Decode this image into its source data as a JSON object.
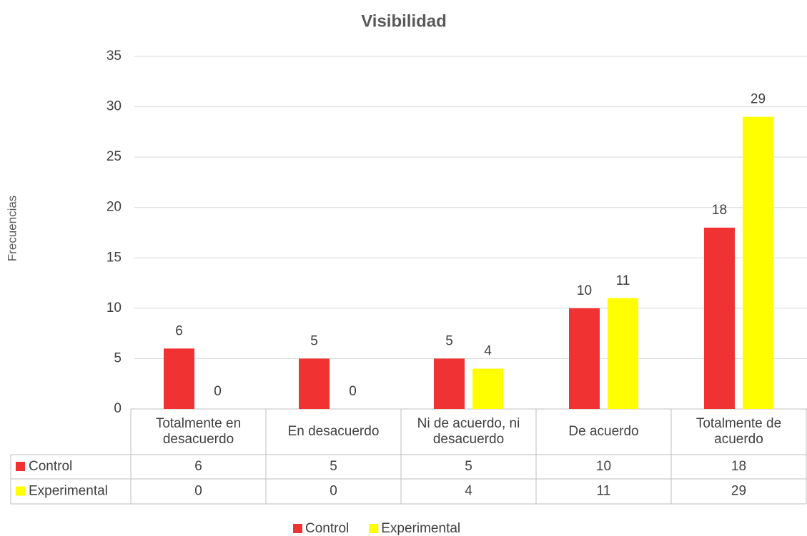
{
  "chart_data": {
    "type": "bar",
    "title": "Visibilidad",
    "y_label": "Frecuencias",
    "categories": [
      "Totalmente en desacuerdo",
      "En desacuerdo",
      "Ni de acuerdo, ni  desacuerdo",
      "De acuerdo",
      "Totalmente de acuerdo"
    ],
    "series": [
      {
        "name": "Control",
        "color": "#f03232",
        "values": [
          6,
          5,
          5,
          10,
          18
        ]
      },
      {
        "name": "Experimental",
        "color": "#ffff00",
        "values": [
          0,
          0,
          4,
          11,
          29
        ]
      }
    ],
    "ylim": [
      0,
      35
    ],
    "yticks": [
      0,
      5,
      10,
      15,
      20,
      25,
      30,
      35
    ],
    "grid": true,
    "data_table": true,
    "legend": "bottom"
  }
}
